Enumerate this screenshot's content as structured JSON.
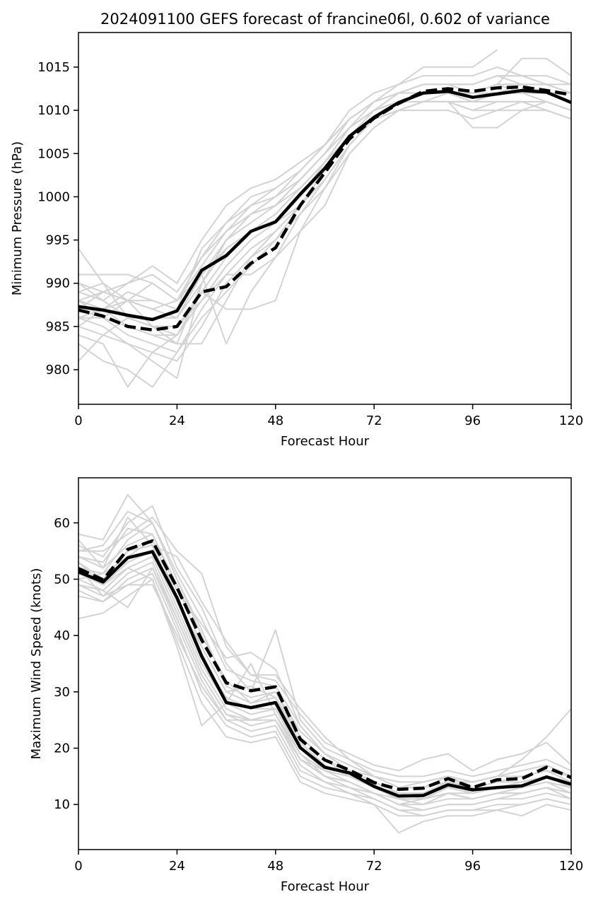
{
  "figure_title": "2024091100 GEFS forecast of francine06l, 0.602 of variance",
  "colors": {
    "ensemble": "#d3d3d3",
    "mean": "#000000",
    "axis": "#000000",
    "background": "#ffffff"
  },
  "chart_data": [
    {
      "type": "line",
      "title": "2024091100 GEFS forecast of francine06l, 0.602 of variance",
      "xlabel": "Forecast Hour",
      "ylabel": "Minimum Pressure (hPa)",
      "xlim": [
        0,
        120
      ],
      "ylim": [
        976,
        1019
      ],
      "xticks": [
        0,
        24,
        48,
        72,
        96,
        120
      ],
      "yticks": [
        980,
        985,
        990,
        995,
        1000,
        1005,
        1010,
        1015
      ],
      "x": [
        0,
        6,
        12,
        18,
        24,
        30,
        36,
        42,
        48,
        54,
        60,
        66,
        72,
        78,
        84,
        90,
        96,
        102,
        108,
        114,
        120
      ],
      "ensemble_members": [
        [
          994,
          990,
          986,
          985,
          983,
          990,
          995,
          998,
          999,
          1002,
          1005,
          1009,
          1011,
          1012,
          1013,
          1013,
          1013,
          1014,
          1013,
          1012,
          1011
        ],
        [
          991,
          991,
          991,
          990,
          988,
          993,
          997,
          999,
          1000,
          1003,
          1006,
          1010,
          1012,
          1013,
          1014,
          1014,
          1014,
          1015,
          1014,
          1013,
          1012
        ],
        [
          990,
          989,
          988,
          987,
          986,
          991,
          994,
          996,
          998,
          1001,
          1004,
          1008,
          1011,
          1012,
          1013,
          1013,
          1012,
          1013,
          1016,
          1016,
          1014
        ],
        [
          989,
          988,
          990,
          992,
          990,
          995,
          999,
          1001,
          1002,
          1004,
          1006,
          1009,
          1011,
          1013,
          1015,
          1015,
          1015,
          1017,
          null,
          null,
          null
        ],
        [
          988,
          986,
          984,
          983,
          982,
          987,
          991,
          994,
          996,
          999,
          1003,
          1007,
          1010,
          1012,
          1012,
          1012,
          1011,
          1012,
          1012,
          1011,
          1010
        ],
        [
          987,
          989,
          990,
          991,
          989,
          993,
          996,
          998,
          1000,
          1002,
          1005,
          1008,
          1010,
          1011,
          1011,
          1011,
          1010,
          1010,
          1011,
          1010,
          1009
        ],
        [
          986,
          985,
          983,
          982,
          981,
          985,
          990,
          993,
          995,
          999,
          1003,
          1007,
          1009,
          1010,
          1011,
          1011,
          1011,
          1012,
          1012,
          1012,
          1011
        ],
        [
          985,
          987,
          989,
          988,
          987,
          991,
          995,
          997,
          999,
          1002,
          1005,
          1008,
          1010,
          1011,
          1012,
          1012,
          1012,
          1013,
          1013,
          1012,
          1011
        ],
        [
          984,
          983,
          978,
          982,
          984,
          989,
          993,
          996,
          998,
          1001,
          1004,
          1007,
          1009,
          1010,
          1011,
          1012,
          1012,
          1013,
          1012,
          1012,
          1011
        ],
        [
          983,
          981,
          980,
          978,
          982,
          986,
          989,
          992,
          995,
          998,
          1001,
          1005,
          1008,
          1010,
          1011,
          1011,
          1010,
          1011,
          1011,
          1010,
          1009
        ],
        [
          981,
          984,
          986,
          985,
          985,
          988,
          992,
          995,
          997,
          1000,
          1004,
          1008,
          1010,
          1012,
          1013,
          1013,
          1013,
          1014,
          1014,
          1013,
          1013
        ],
        [
          988,
          987,
          985,
          984,
          984,
          988,
          992,
          995,
          997,
          1000,
          1003,
          1007,
          1009,
          1011,
          1012,
          1012,
          1012,
          1013,
          1013,
          1013,
          1012
        ],
        [
          989,
          990,
          988,
          987,
          988,
          992,
          996,
          999,
          1001,
          1003,
          1006,
          1009,
          1011,
          1012,
          1012,
          1012,
          1011,
          1011,
          1011,
          1011,
          1010
        ],
        [
          990,
          988,
          986,
          985,
          985,
          989,
          987,
          987,
          988,
          996,
          1001,
          1006,
          1009,
          1011,
          1012,
          1012,
          1012,
          1012,
          1013,
          1013,
          1012
        ],
        [
          986,
          986,
          985,
          984,
          983,
          983,
          988,
          993,
          996,
          999,
          1002,
          1006,
          1009,
          1011,
          1012,
          1012,
          1012,
          1013,
          1013,
          1012,
          1011
        ],
        [
          985,
          984,
          983,
          981,
          979,
          990,
          994,
          996,
          997,
          999,
          1003,
          1007,
          1009,
          1010,
          1010,
          1010,
          1009,
          1010,
          1010,
          1010,
          1009
        ],
        [
          987,
          986,
          988,
          990,
          988,
          991,
          983,
          989,
          993,
          998,
          1002,
          1006,
          1009,
          1011,
          1012,
          1012,
          1011,
          1011,
          1011,
          1011,
          1010
        ],
        [
          988,
          989,
          988,
          985,
          984,
          988,
          991,
          991,
          993,
          996,
          999,
          1005,
          1008,
          1010,
          1011,
          1011,
          1008,
          1008,
          1010,
          1011,
          1010
        ],
        [
          986,
          987,
          988,
          988,
          987,
          994,
          997,
          1000,
          1001,
          1003,
          1006,
          1009,
          1011,
          1012,
          1013,
          1013,
          1013,
          1014,
          1014,
          1014,
          1013
        ],
        [
          989,
          988,
          986,
          986,
          986,
          990,
          995,
          998,
          999,
          1001,
          1004,
          1008,
          1010,
          1011,
          1011,
          1011,
          1011,
          1012,
          1012,
          1012,
          1012
        ]
      ],
      "series": [
        {
          "style": "solid",
          "values": [
            987.3,
            986.9,
            986.3,
            985.8,
            986.8,
            991.5,
            993.2,
            996.0,
            997.1,
            1000.3,
            1003.3,
            1007.0,
            1009.2,
            1010.9,
            1012.0,
            1012.2,
            1011.5,
            1011.9,
            1012.3,
            1012.1,
            1010.9
          ]
        },
        {
          "style": "dashed",
          "values": [
            986.9,
            986.2,
            985.0,
            984.6,
            985.0,
            989.0,
            989.6,
            992.3,
            994.1,
            999.0,
            1002.8,
            1006.7,
            1009.1,
            1010.8,
            1012.2,
            1012.5,
            1012.2,
            1012.6,
            1012.7,
            1012.3,
            1011.8
          ]
        }
      ]
    },
    {
      "type": "line",
      "title": "",
      "xlabel": "Forecast Hour",
      "ylabel": "Maximum Wind Speed (knots)",
      "xlim": [
        0,
        120
      ],
      "ylim": [
        2,
        68
      ],
      "xticks": [
        0,
        24,
        48,
        72,
        96,
        120
      ],
      "yticks": [
        10,
        20,
        30,
        40,
        50,
        60
      ],
      "x": [
        0,
        6,
        12,
        18,
        24,
        30,
        36,
        42,
        48,
        54,
        60,
        66,
        72,
        78,
        84,
        90,
        96,
        102,
        108,
        114,
        120
      ],
      "ensemble_members": [
        [
          58,
          57,
          65,
          60,
          50,
          40,
          32,
          28,
          29,
          22,
          18,
          16,
          14,
          12,
          12,
          14,
          12,
          13,
          14,
          15,
          14
        ],
        [
          56,
          54,
          60,
          63,
          52,
          45,
          35,
          30,
          41,
          25,
          20,
          18,
          15,
          14,
          14,
          15,
          14,
          15,
          18,
          22,
          27
        ],
        [
          55,
          55,
          58,
          61,
          55,
          51,
          38,
          33,
          33,
          27,
          22,
          18,
          16,
          15,
          15,
          16,
          15,
          16,
          17,
          18,
          16
        ],
        [
          54,
          52,
          56,
          58,
          48,
          42,
          36,
          37,
          34,
          24,
          19,
          17,
          15,
          13,
          13,
          14,
          14,
          15,
          16,
          17,
          15
        ],
        [
          53,
          50,
          55,
          56,
          46,
          38,
          30,
          28,
          30,
          22,
          18,
          15,
          14,
          12,
          11,
          12,
          12,
          13,
          14,
          15,
          14
        ],
        [
          52,
          51,
          54,
          57,
          47,
          36,
          29,
          27,
          27,
          20,
          16,
          15,
          13,
          11,
          10,
          12,
          11,
          12,
          13,
          15,
          13
        ],
        [
          51,
          49,
          53,
          55,
          45,
          35,
          28,
          26,
          27,
          19,
          15,
          14,
          12,
          10,
          10,
          11,
          11,
          12,
          13,
          14,
          13
        ],
        [
          50,
          48,
          52,
          54,
          44,
          34,
          27,
          25,
          26,
          18,
          15,
          13,
          12,
          10,
          9,
          10,
          10,
          11,
          12,
          13,
          12
        ],
        [
          49,
          47,
          51,
          53,
          43,
          33,
          26,
          24,
          25,
          17,
          14,
          13,
          11,
          9,
          9,
          10,
          10,
          11,
          11,
          12,
          11
        ],
        [
          48,
          46,
          50,
          52,
          42,
          32,
          25,
          23,
          24,
          16,
          14,
          12,
          11,
          9,
          8,
          9,
          9,
          10,
          10,
          11,
          10
        ],
        [
          47,
          46,
          49,
          51,
          41,
          30,
          24,
          22,
          23,
          15,
          13,
          12,
          10,
          8,
          8,
          9,
          9,
          9,
          10,
          11,
          10
        ],
        [
          43,
          44,
          47,
          50,
          39,
          28,
          22,
          21,
          22,
          14,
          12,
          11,
          10,
          5,
          7,
          8,
          8,
          9,
          8,
          10,
          9
        ],
        [
          57,
          52,
          61,
          56,
          54,
          46,
          39,
          33,
          32,
          26,
          21,
          19,
          17,
          16,
          18,
          19,
          16,
          18,
          19,
          21,
          17
        ],
        [
          50,
          51,
          57,
          60,
          50,
          41,
          31,
          29,
          30,
          23,
          19,
          16,
          15,
          13,
          14,
          15,
          13,
          14,
          15,
          16,
          14
        ],
        [
          52,
          47,
          49,
          49,
          40,
          31,
          25,
          25,
          25,
          18,
          16,
          14,
          12,
          11,
          11,
          12,
          11,
          12,
          12,
          13,
          12
        ],
        [
          53,
          49,
          52,
          50,
          38,
          24,
          28,
          35,
          26,
          19,
          16,
          15,
          13,
          12,
          12,
          13,
          12,
          13,
          13,
          14,
          12
        ],
        [
          54,
          53,
          59,
          58,
          49,
          38,
          30,
          31,
          29,
          21,
          17,
          15,
          14,
          12,
          12,
          14,
          13,
          14,
          14,
          15,
          13
        ],
        [
          49,
          48,
          45,
          52,
          43,
          33,
          26,
          25,
          26,
          18,
          15,
          14,
          12,
          10,
          11,
          12,
          11,
          12,
          12,
          13,
          11
        ],
        [
          55,
          56,
          62,
          60,
          51,
          43,
          34,
          32,
          31,
          24,
          19,
          17,
          15,
          13,
          13,
          15,
          14,
          15,
          15,
          16,
          15
        ],
        [
          51,
          50,
          55,
          57,
          47,
          37,
          28,
          27,
          28,
          20,
          17,
          15,
          13,
          11,
          11,
          13,
          12,
          13,
          13,
          14,
          13
        ]
      ],
      "series": [
        {
          "style": "solid",
          "values": [
            51.3,
            49.5,
            53.8,
            54.9,
            46.7,
            36.3,
            28.1,
            27.2,
            28.1,
            20.1,
            16.6,
            15.6,
            13.2,
            11.5,
            11.6,
            13.5,
            12.6,
            13.0,
            13.3,
            14.9,
            13.6
          ]
        },
        {
          "style": "dashed",
          "values": [
            51.9,
            49.9,
            55.3,
            56.8,
            48.5,
            39.2,
            31.6,
            30.2,
            30.9,
            21.6,
            17.9,
            16.1,
            13.9,
            12.7,
            12.9,
            14.6,
            13.0,
            14.4,
            14.6,
            16.6,
            14.8
          ]
        }
      ]
    }
  ]
}
